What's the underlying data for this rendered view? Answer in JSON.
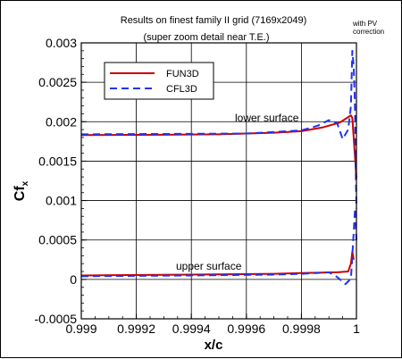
{
  "title_line1": "Results on finest family II grid (7169x2049)",
  "title_line2": "(super zoom detail near T.E.)",
  "note_line1": "with PV",
  "note_line2": "correction",
  "colors": {
    "fun3d": "#cc0000",
    "cfl3d": "#2233ee",
    "grid": "#000000"
  },
  "chart_data": {
    "type": "line",
    "xlabel": "x/c",
    "ylabel": "Cf,x",
    "xlim": [
      0.999,
      1.0
    ],
    "ylim": [
      -0.0005,
      0.003
    ],
    "xticks": [
      "0.999",
      "0.9992",
      "0.9994",
      "0.9996",
      "0.9998",
      "1"
    ],
    "yticks": [
      "-0.0005",
      "0",
      "0.0005",
      "0.001",
      "0.0015",
      "0.002",
      "0.0025",
      "0.003"
    ],
    "grid": true,
    "legend_position": "top-left",
    "annotations": [
      "lower surface",
      "upper surface"
    ],
    "series": [
      {
        "name": "FUN3D",
        "style": "solid",
        "color": "#cc0000",
        "segments": [
          [
            [
              0.999,
              0.00183
            ],
            [
              0.9993,
              0.001835
            ],
            [
              0.9995,
              0.00184
            ],
            [
              0.9997,
              0.00186
            ],
            [
              0.9998,
              0.00188
            ],
            [
              0.99988,
              0.00193
            ],
            [
              0.99994,
              0.00199
            ],
            [
              0.99998,
              0.00208
            ],
            [
              0.999985,
              0.00205
            ],
            [
              0.99999,
              0.0018
            ],
            [
              1.0,
              0.00128
            ]
          ],
          [
            [
              0.999,
              5e-05
            ],
            [
              0.9994,
              6e-05
            ],
            [
              0.9997,
              7e-05
            ],
            [
              0.9998,
              8e-05
            ],
            [
              0.99993,
              9e-05
            ],
            [
              0.99997,
              0.0001
            ],
            [
              0.99998,
              0.0002
            ],
            [
              0.999985,
              0.00035
            ],
            [
              0.99999,
              0.00025
            ]
          ]
        ]
      },
      {
        "name": "CFL3D",
        "style": "dashed",
        "color": "#2233ee",
        "segments": [
          [
            [
              0.999,
              0.00184
            ],
            [
              0.9993,
              0.001845
            ],
            [
              0.9996,
              0.00185
            ],
            [
              0.9998,
              0.00189
            ],
            [
              0.99986,
              0.00195
            ],
            [
              0.9999,
              0.00202
            ],
            [
              0.99993,
              0.00198
            ],
            [
              0.99995,
              0.00178
            ],
            [
              0.99997,
              0.0019
            ],
            [
              0.99998,
              0.0022
            ],
            [
              0.999985,
              0.0029
            ],
            [
              0.99999,
              0.0027
            ],
            [
              0.999993,
              0.0024
            ],
            [
              0.999995,
              0.0021
            ],
            [
              0.999997,
              0.0015
            ],
            [
              1.0,
              0.0009
            ]
          ],
          [
            [
              0.999,
              4e-05
            ],
            [
              0.9994,
              5e-05
            ],
            [
              0.9997,
              6e-05
            ],
            [
              0.9998,
              7e-05
            ],
            [
              0.9999,
              9e-05
            ],
            [
              0.99993,
              3e-05
            ],
            [
              0.99996,
              -6e-05
            ],
            [
              0.99998,
              1e-05
            ],
            [
              0.999985,
              0.0003
            ],
            [
              0.99999,
              0.0006
            ],
            [
              0.999995,
              0.0009
            ],
            [
              1.0,
              0.0005
            ]
          ]
        ]
      }
    ]
  }
}
